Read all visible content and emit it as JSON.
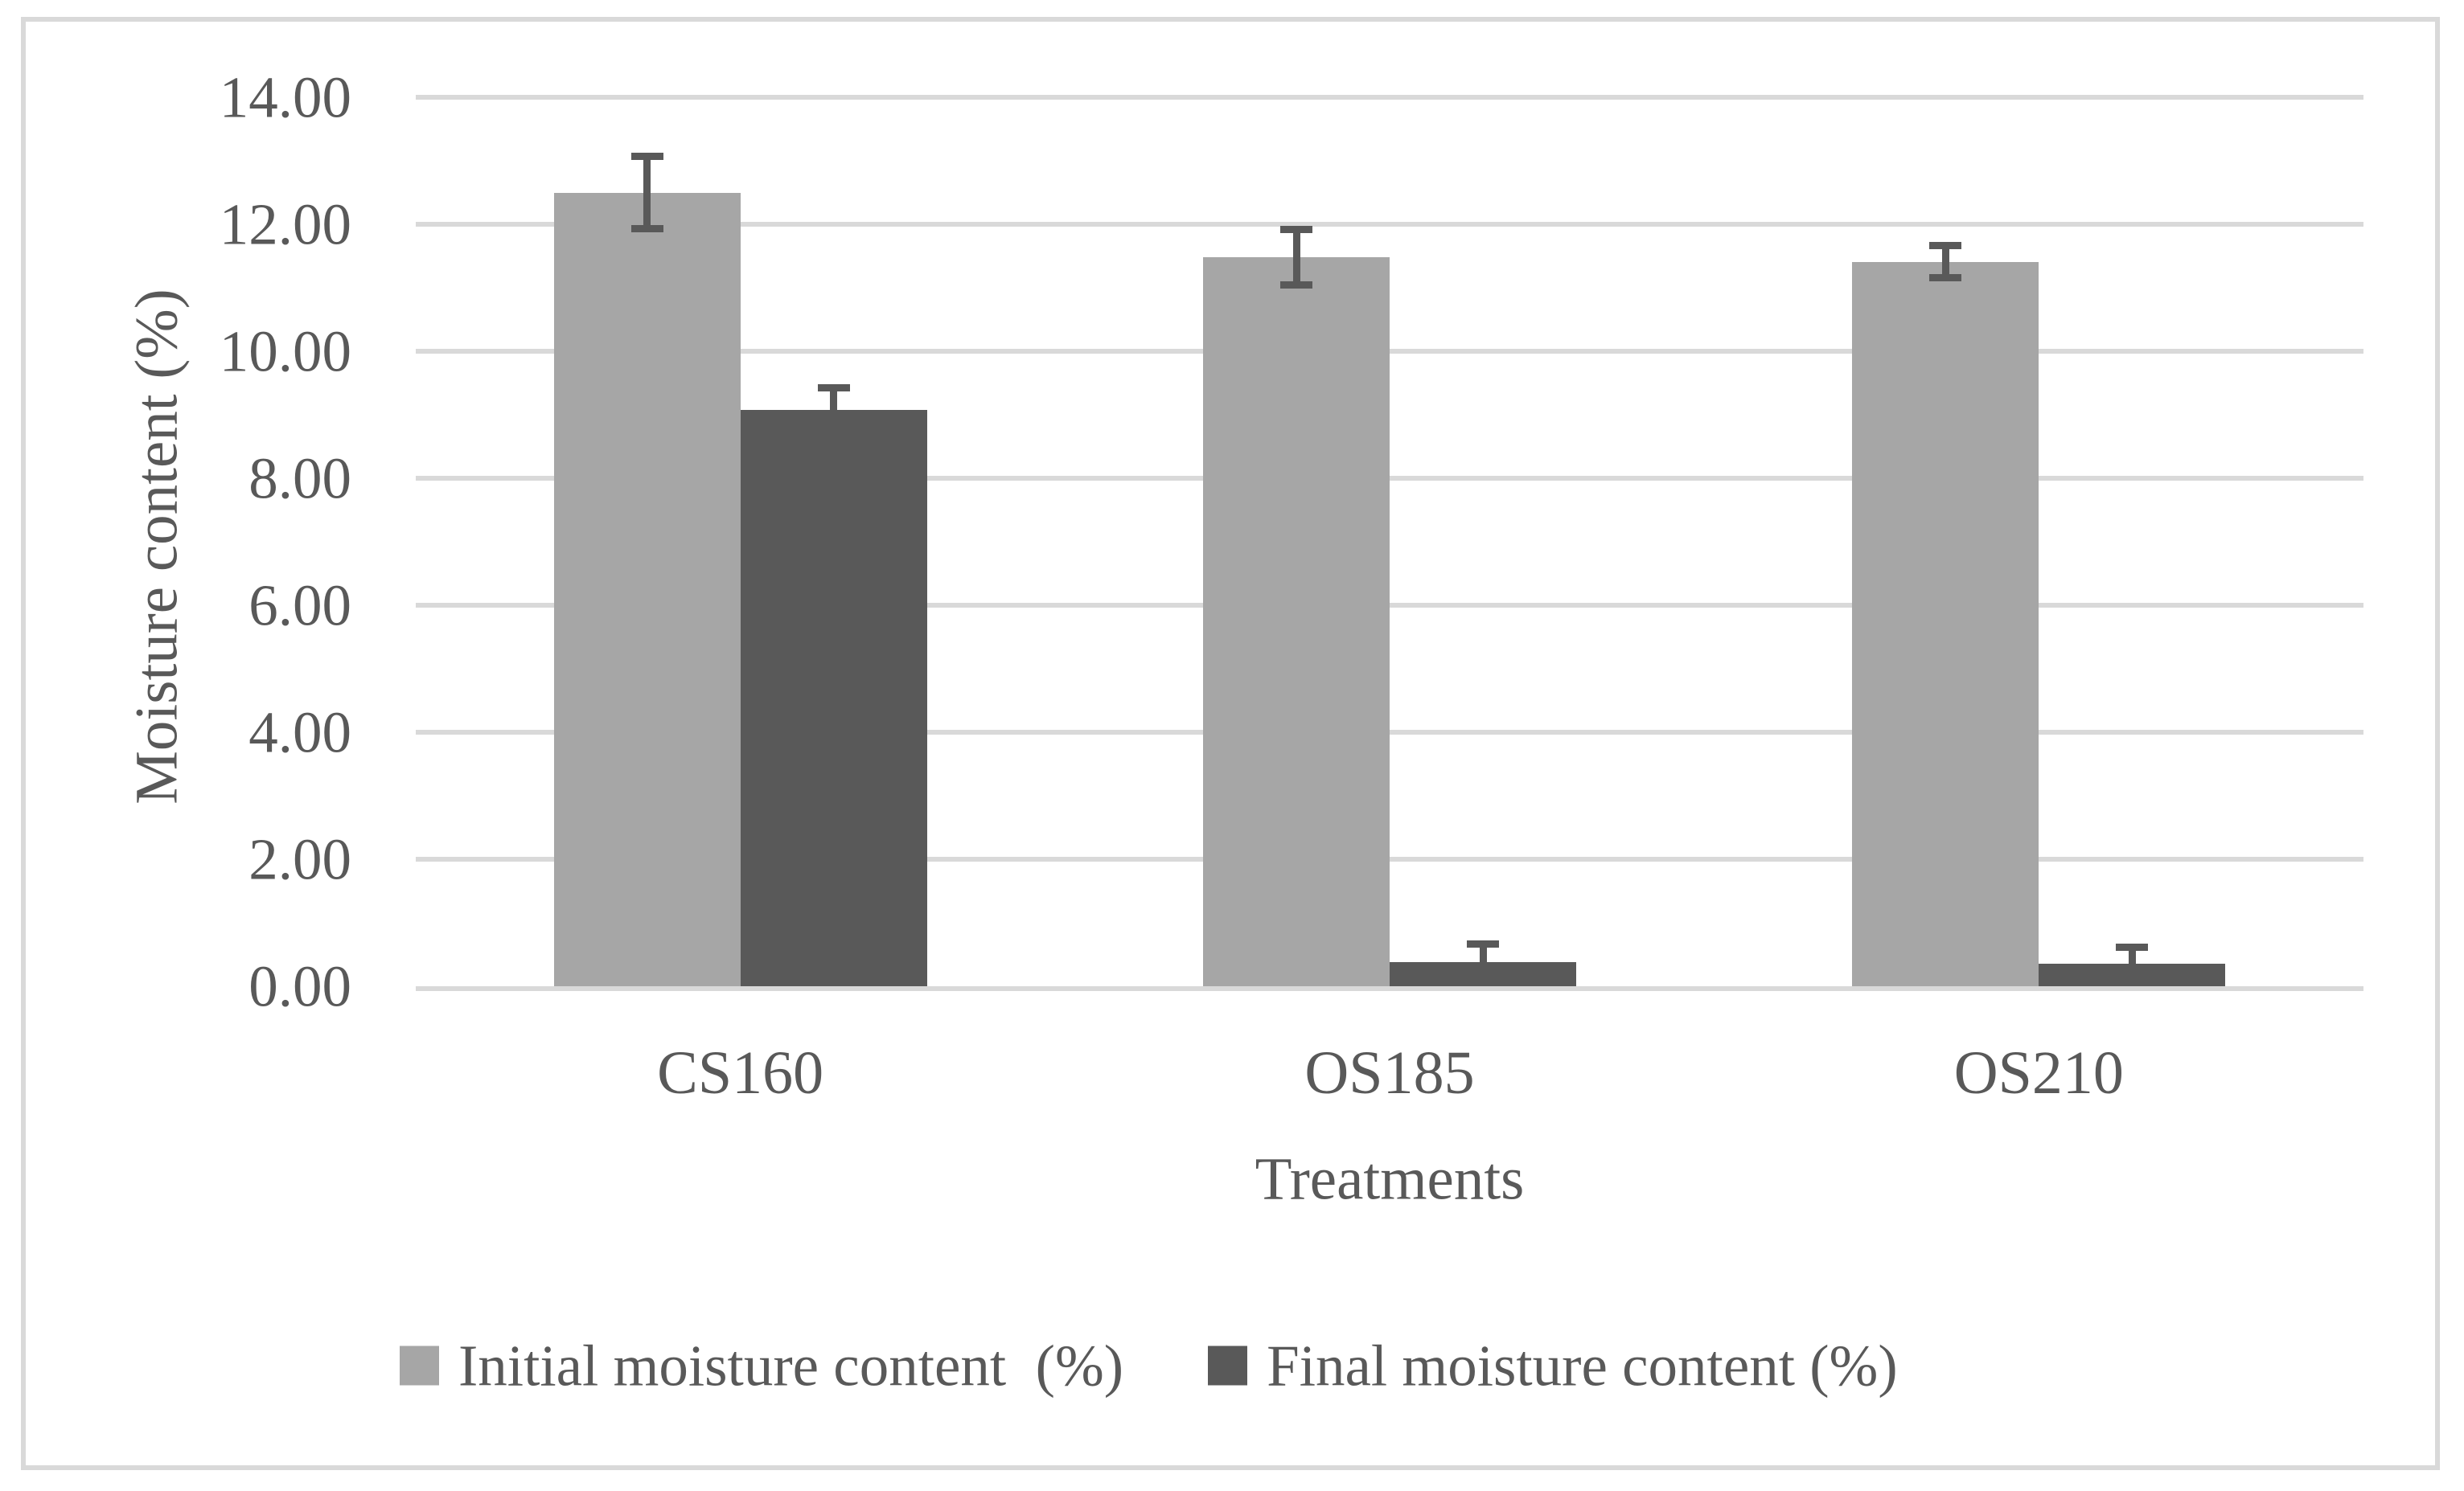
{
  "chart_data": {
    "type": "bar",
    "title": "",
    "categories": [
      "CS160",
      "OS185",
      "OS210"
    ],
    "series": [
      {
        "name": "Initial moisture content  (%)",
        "color": "#a6a6a6",
        "values": [
          12.5,
          11.48,
          11.41
        ],
        "errors": [
          0.57,
          0.44,
          0.25
        ]
      },
      {
        "name": "Final moisture content (%)",
        "color": "#595959",
        "values": [
          9.08,
          0.38,
          0.35
        ],
        "errors": [
          0.35,
          0.29,
          0.26
        ]
      }
    ],
    "xlabel": "Treatments",
    "ylabel": "Moisture content (%)",
    "ylim": [
      0,
      14
    ],
    "ytick_step": 2,
    "yticks": [
      "14.00",
      "12.00",
      "10.00",
      "8.00",
      "6.00",
      "4.00",
      "2.00",
      "0.00"
    ],
    "ytick_values": [
      14,
      12,
      10,
      8,
      6,
      4,
      2,
      0
    ],
    "grid": true,
    "legend_position": "bottom",
    "colors": {
      "gridline": "#d9d9d9",
      "frame_border": "#d9d9d9",
      "text": "#595959",
      "error_bar": "#595959",
      "background": "#ffffff"
    }
  }
}
